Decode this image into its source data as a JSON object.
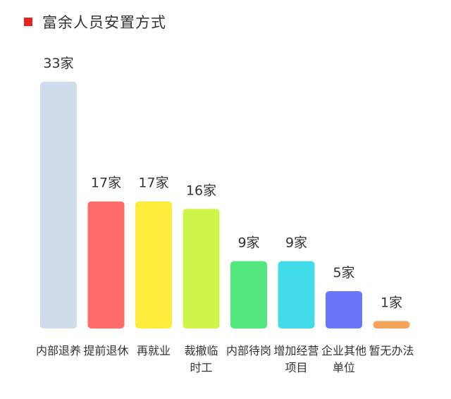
{
  "chart_data": {
    "type": "bar",
    "title": "富余人员安置方式",
    "categories": [
      [
        "内部退养"
      ],
      [
        "提前退休"
      ],
      [
        "再就业"
      ],
      [
        "裁撤临",
        "时工"
      ],
      [
        "内部待岗"
      ],
      [
        "增加经营",
        "项目"
      ],
      [
        "企业其他",
        "单位"
      ],
      [
        "暂无办法"
      ]
    ],
    "values": [
      33,
      17,
      17,
      16,
      9,
      9,
      5,
      1
    ],
    "value_labels": [
      "33家",
      "17家",
      "17家",
      "16家",
      "9家",
      "9家",
      "5家",
      "1家"
    ],
    "colors": [
      "#cfdcec",
      "#fd6b6b",
      "#fdec3b",
      "#d0f54a",
      "#52e87e",
      "#41dce7",
      "#6c74fa",
      "#f3a55b"
    ],
    "ylim": [
      0,
      33
    ],
    "grid": false,
    "legend": "none",
    "xlabel": "",
    "ylabel": ""
  },
  "title_marker_color": "#e02424"
}
